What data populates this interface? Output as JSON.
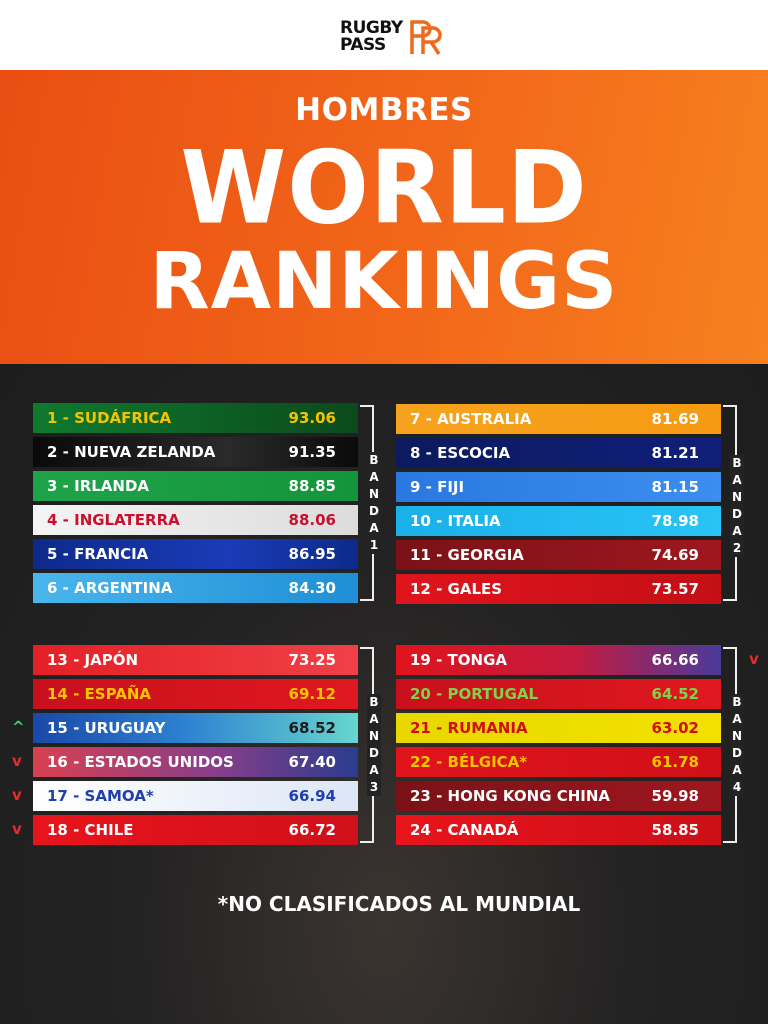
{
  "logo": {
    "line1": "RUGBY",
    "line2": "PASS"
  },
  "header": {
    "subtitle": "HOMBRES",
    "title_line1": "WORLD",
    "title_line2": "RANKINGS"
  },
  "bands": [
    {
      "label": [
        "B",
        "A",
        "N",
        "D",
        "A",
        "1"
      ]
    },
    {
      "label": [
        "B",
        "A",
        "N",
        "D",
        "A",
        "2"
      ]
    },
    {
      "label": [
        "B",
        "A",
        "N",
        "D",
        "A",
        "3"
      ]
    },
    {
      "label": [
        "B",
        "A",
        "N",
        "D",
        "A",
        "4"
      ]
    }
  ],
  "rankings": [
    {
      "name": "1 - SUDÁFRICA",
      "score": "93.06",
      "bg": "linear-gradient(90deg,#0f7a2e,#0b4a1c)",
      "name_color": "#f5c400",
      "score_color": "#f5c400"
    },
    {
      "name": "2 - NUEVA ZELANDA",
      "score": "91.35",
      "bg": "linear-gradient(90deg,#0a0a0a,#2a2a2a 60%,#0a0a0a)",
      "name_color": "#ffffff",
      "score_color": "#ffffff"
    },
    {
      "name": "3 - IRLANDA",
      "score": "88.85",
      "bg": "linear-gradient(90deg,#1fa34a,#14943c)",
      "name_color": "#ffffff",
      "score_color": "#ffffff"
    },
    {
      "name": "4 - INGLATERRA",
      "score": "88.06",
      "bg": "linear-gradient(90deg,#f4f4f4,#dcdcdc)",
      "name_color": "#c8102e",
      "score_color": "#c8102e"
    },
    {
      "name": "5 - FRANCIA",
      "score": "86.95",
      "bg": "linear-gradient(90deg,#0d2a8a,#1a3bb8 60%,#0d2a8a)",
      "name_color": "#ffffff",
      "score_color": "#ffffff"
    },
    {
      "name": "6 - ARGENTINA",
      "score": "84.30",
      "bg": "linear-gradient(90deg,#49b6ec,#1f8fd6)",
      "name_color": "#ffffff",
      "score_color": "#ffffff"
    },
    {
      "name": "7 - AUSTRALIA",
      "score": "81.69",
      "bg": "linear-gradient(90deg,#f7a21e,#f59a12)",
      "name_color": "#ffffff",
      "score_color": "#ffffff"
    },
    {
      "name": "8 - ESCOCIA",
      "score": "81.21",
      "bg": "linear-gradient(90deg,#0c1a5e,#101f7a)",
      "name_color": "#ffffff",
      "score_color": "#ffffff"
    },
    {
      "name": "9 - FIJI",
      "score": "81.15",
      "bg": "linear-gradient(90deg,#2a78e0,#3b8ef0)",
      "name_color": "#ffffff",
      "score_color": "#ffffff"
    },
    {
      "name": "10 - ITALIA",
      "score": "78.98",
      "bg": "linear-gradient(90deg,#1ab0ea,#29c3f5)",
      "name_color": "#ffffff",
      "score_color": "#ffffff"
    },
    {
      "name": "11 - GEORGIA",
      "score": "74.69",
      "bg": "linear-gradient(90deg,#7a1218,#a0161e)",
      "name_color": "#ffffff",
      "score_color": "#ffffff"
    },
    {
      "name": "12 - GALES",
      "score": "73.57",
      "bg": "linear-gradient(90deg,#e0141c,#c40f16)",
      "name_color": "#ffffff",
      "score_color": "#ffffff"
    },
    {
      "name": "13 - JAPÓN",
      "score": "73.25",
      "bg": "linear-gradient(90deg,#e42027,#f04048)",
      "name_color": "#ffffff",
      "score_color": "#ffffff"
    },
    {
      "name": "14 - ESPAÑA",
      "score": "69.12",
      "bg": "linear-gradient(90deg,#c8101c,#e0181f)",
      "name_color": "#f7c600",
      "score_color": "#f7c600"
    },
    {
      "name": "15 - URUGUAY",
      "score": "68.52",
      "bg": "linear-gradient(90deg,#1a49a8,#2d7fd0 45%,#66d6cf)",
      "name_color": "#ffffff",
      "score_color": "#1b1b1b"
    },
    {
      "name": "16 - ESTADOS UNIDOS",
      "score": "67.40",
      "bg": "linear-gradient(90deg,#d8404f,#8a3e8a 55%,#2a3c8e)",
      "name_color": "#ffffff",
      "score_color": "#ffffff"
    },
    {
      "name": "17 - SAMOA*",
      "score": "66.94",
      "bg": "linear-gradient(90deg,#ffffff,#dde6f5)",
      "name_color": "#1f3fb0",
      "score_color": "#1f3fb0"
    },
    {
      "name": "18 - CHILE",
      "score": "66.72",
      "bg": "linear-gradient(90deg,#e8141c,#d0101a)",
      "name_color": "#ffffff",
      "score_color": "#ffffff"
    },
    {
      "name": "19 - TONGA",
      "score": "66.66",
      "bg": "linear-gradient(90deg,#e0141c,#c41a40 55%,#4a3a9a)",
      "name_color": "#ffffff",
      "score_color": "#ffffff"
    },
    {
      "name": "20 - PORTUGAL",
      "score": "64.52",
      "bg": "linear-gradient(90deg,#c8101c,#e0181f)",
      "name_color": "#7fd34a",
      "score_color": "#7fd34a"
    },
    {
      "name": "21 - RUMANIA",
      "score": "63.02",
      "bg": "linear-gradient(90deg,#e8d800,#f2e100)",
      "name_color": "#d01010",
      "score_color": "#d01010"
    },
    {
      "name": "22 - BÉLGICA*",
      "score": "61.78",
      "bg": "linear-gradient(90deg,#e0141c,#d00f18)",
      "name_color": "#f5c400",
      "score_color": "#f5c400"
    },
    {
      "name": "23 - HONG KONG CHINA",
      "score": "59.98",
      "bg": "linear-gradient(90deg,#7a1218,#a0161e)",
      "name_color": "#ffffff",
      "score_color": "#ffffff"
    },
    {
      "name": "24 - CANADÁ",
      "score": "58.85",
      "bg": "linear-gradient(90deg,#e8141c,#cc0f16)",
      "name_color": "#ffffff",
      "score_color": "#ffffff"
    }
  ],
  "arrows": [
    {
      "symbol": "^",
      "color": "#3fd16a"
    },
    {
      "symbol": "v",
      "color": "#e82a2a"
    },
    {
      "symbol": "v",
      "color": "#e82a2a"
    },
    {
      "symbol": "v",
      "color": "#e82a2a"
    },
    {
      "symbol": "v",
      "color": "#e82a2a"
    }
  ],
  "footnote": "*NO CLASIFICADOS AL MUNDIAL"
}
